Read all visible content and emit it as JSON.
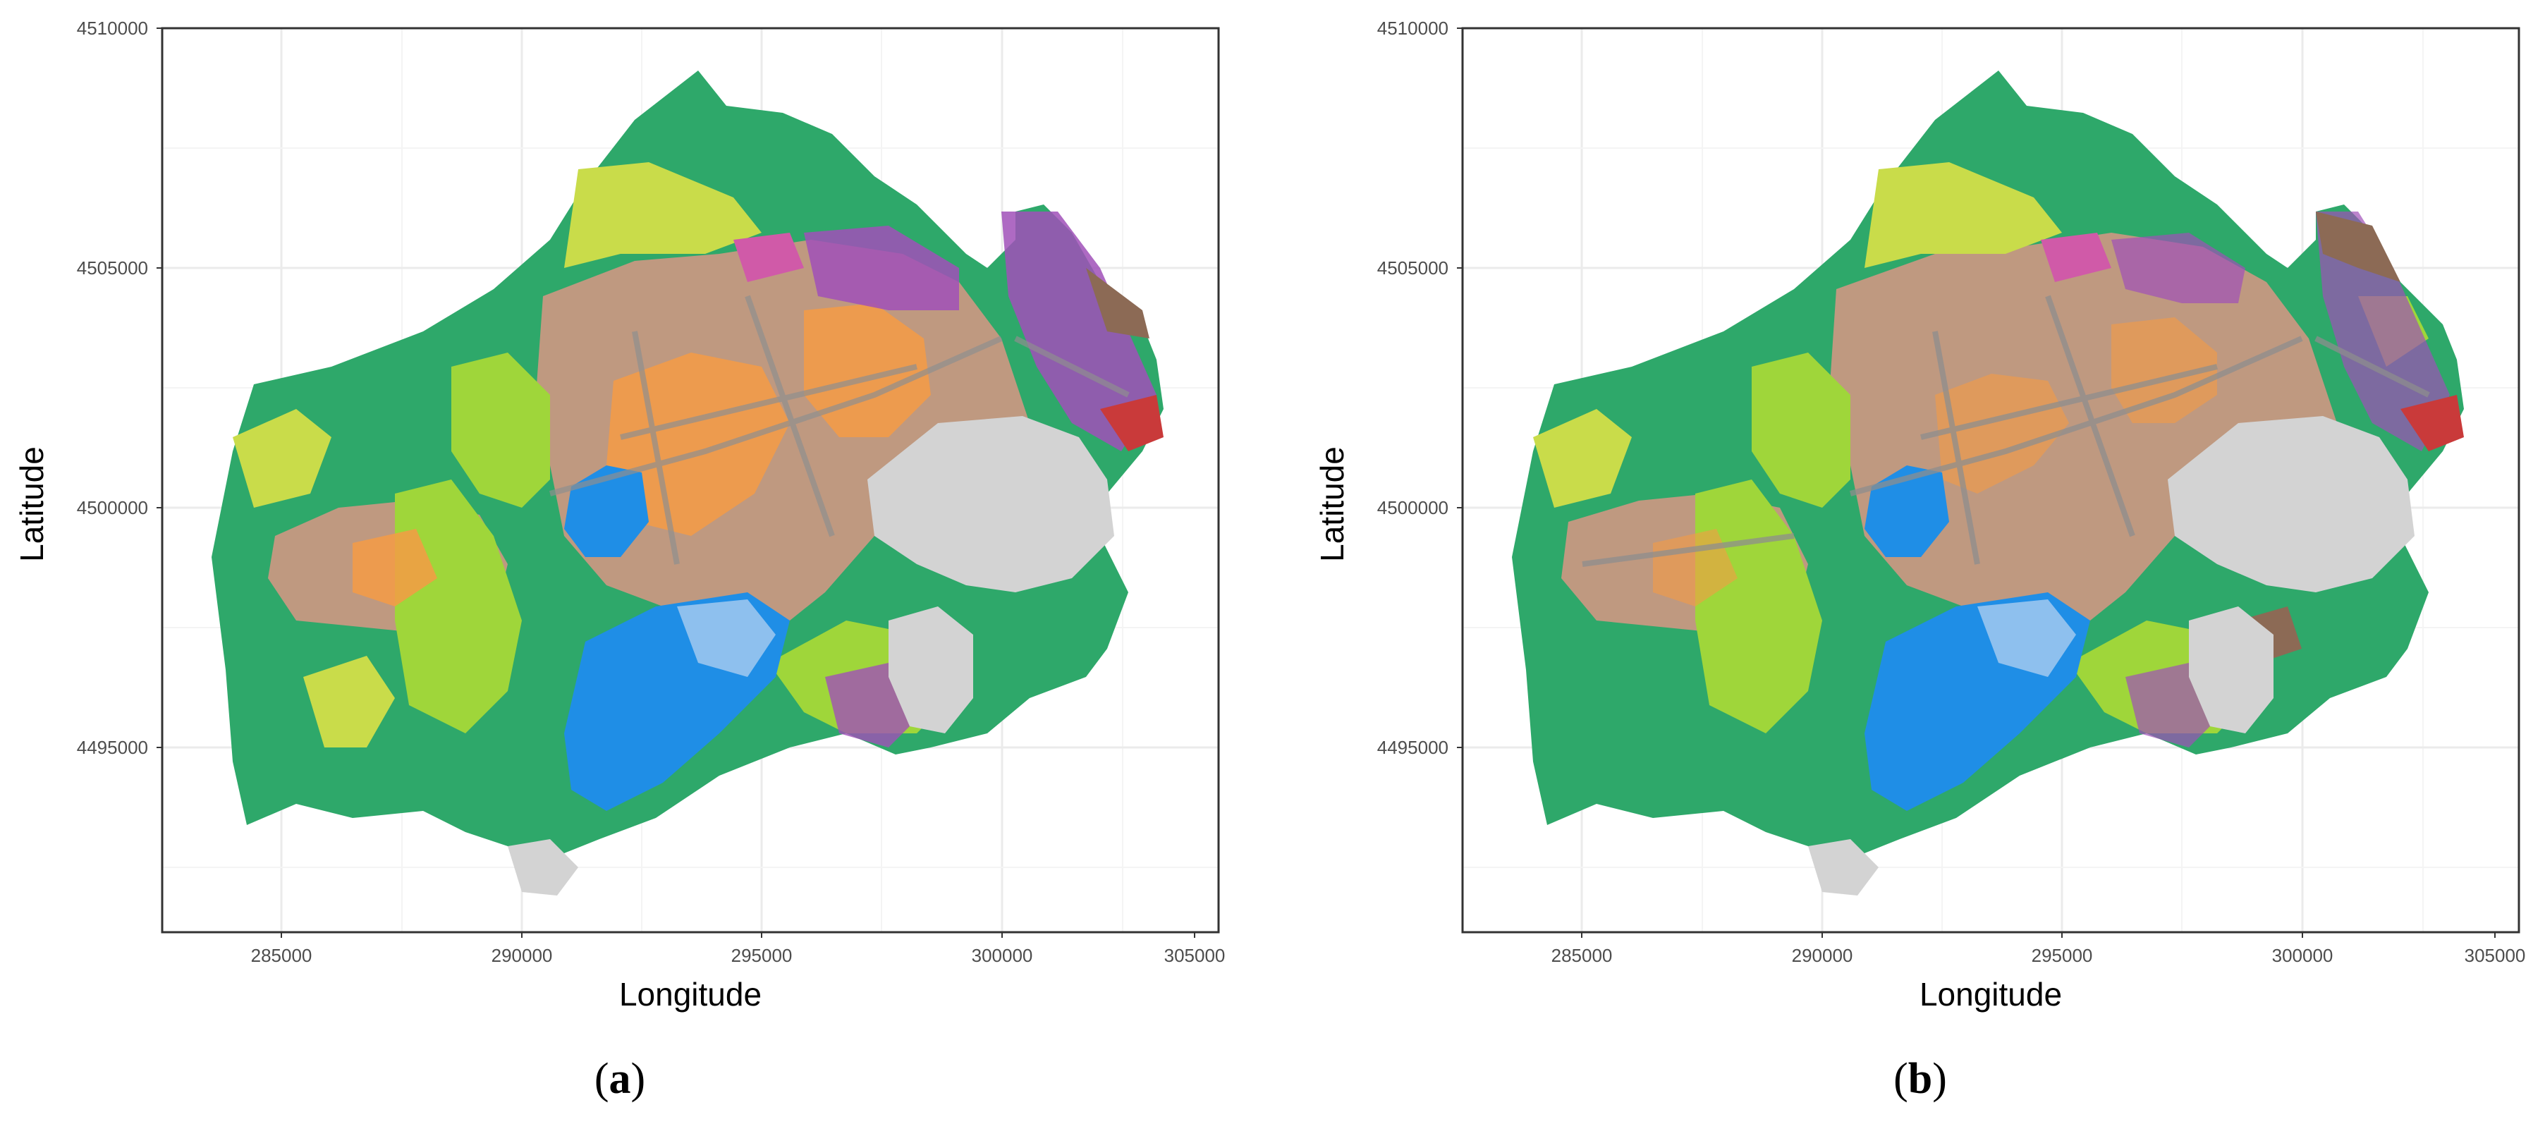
{
  "panels": [
    {
      "id": "a",
      "caption_open": "(",
      "caption_letter": "a",
      "caption_close": ")",
      "xlabel": "Longitude",
      "ylabel": "Latitude",
      "xticks": [
        "285000",
        "290000",
        "295000",
        "300000",
        "305000"
      ],
      "yticks": [
        "4510000",
        "4505000",
        "4500000",
        "4495000"
      ]
    },
    {
      "id": "b",
      "caption_open": "(",
      "caption_letter": "b",
      "caption_close": ")",
      "xlabel": "Longitude",
      "ylabel": "Latitude",
      "xticks": [
        "285000",
        "290000",
        "295000",
        "300000",
        "305000"
      ],
      "yticks": [
        "4510000",
        "4505000",
        "4500000",
        "4495000"
      ]
    }
  ],
  "map_extent": {
    "x_range": [
      283000,
      305000
    ],
    "y_range": [
      4491000,
      4510000
    ]
  },
  "colors": {
    "forest": "#2ea86a",
    "grass": "#9fd63a",
    "yellow_green": "#c9dc4a",
    "urban_brown": "#bf9980",
    "orange_crop": "#f59b45",
    "purple_crop": "#a050b8",
    "magenta": "#d05aa8",
    "brown": "#8c6a55",
    "red": "#c93a3a",
    "water": "#1f8ee6",
    "light_water": "#8ec0ee",
    "bare_gray": "#d3d3d3",
    "road_gray": "#8e8e8e",
    "grid": "#ebebeb",
    "axis": "#333333"
  }
}
